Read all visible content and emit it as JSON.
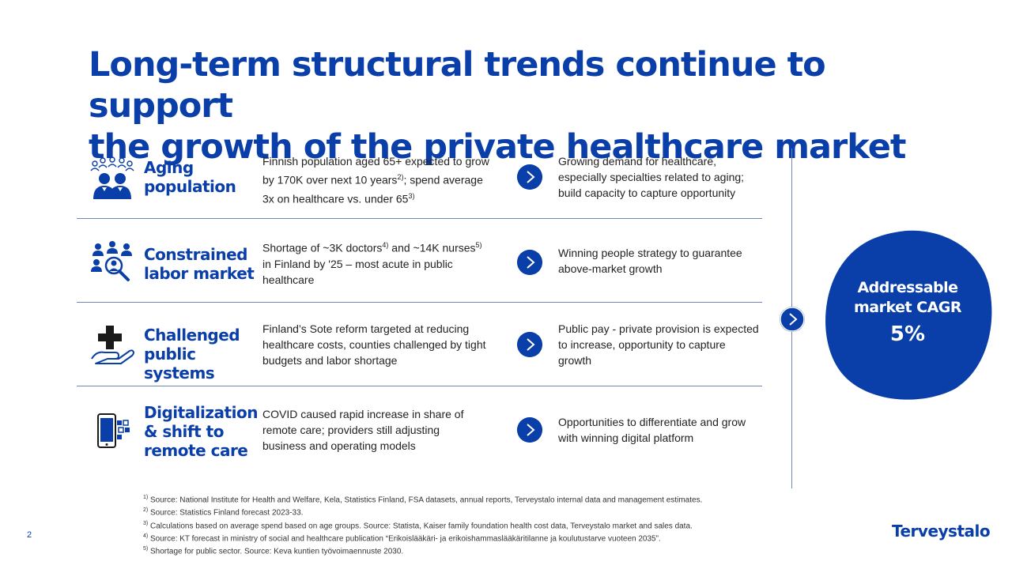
{
  "title": {
    "line1": "Long-term structural trends continue to support",
    "line2": "the growth of the private healthcare market"
  },
  "rows": [
    {
      "icon": "people-group-icon",
      "label_line1": "Aging",
      "label_line2": "population",
      "label_line3": "",
      "desc": {
        "l1": "Finnish population aged 65+ expected to grow",
        "l2a": "by 170K over next 10 years",
        "l2sup": "2)",
        "l2b": "; spend average",
        "l3a": "3x on healthcare vs. under 65",
        "l3sup": "3)"
      },
      "impact": {
        "l1": "Growing demand for healthcare,",
        "l2": "especially specialties related to aging;",
        "l3": "build capacity to capture opportunity"
      }
    },
    {
      "icon": "magnifier-people-icon",
      "label_line1": "Constrained",
      "label_line2": "labor market",
      "label_line3": "",
      "desc": {
        "l1a": "Shortage of ~3K doctors",
        "l1sup1": "4)",
        "l1b": " and ~14K nurses",
        "l1sup2": "5)",
        "l2": "in Finland by '25 – most acute in public",
        "l3": "healthcare"
      },
      "impact": {
        "l1": "Winning people strategy to guarantee",
        "l2": "above-market growth"
      }
    },
    {
      "icon": "hand-cross-icon",
      "label_line1": "Challenged",
      "label_line2": "public systems",
      "label_line3": "",
      "desc": {
        "l1": "Finland’s Sote reform targeted at reducing",
        "l2": "healthcare costs, counties challenged by tight",
        "l3": "budgets and labor shortage"
      },
      "impact": {
        "l1": "Public pay - private provision is expected",
        "l2": "to increase, opportunity to capture",
        "l3": "growth"
      }
    },
    {
      "icon": "mobile-digital-icon",
      "label_line1": "Digitalization",
      "label_line2": "& shift to",
      "label_line3": "remote care",
      "desc": {
        "l1": "COVID caused rapid increase in share of",
        "l2": "remote care; providers still adjusting",
        "l3": "business and operating models"
      },
      "impact": {
        "l1": "Opportunities to differentiate and grow",
        "l2": "with winning digital platform"
      }
    }
  ],
  "cagr": {
    "label_line1": "Addressable",
    "label_line2": "market CAGR",
    "value": "5%"
  },
  "footnotes": [
    {
      "num": "1)",
      "text": " Source: National Institute for Health and Welfare, Kela, Statistics Finland, FSA datasets, annual reports, Terveystalo internal data and management estimates."
    },
    {
      "num": "2)",
      "text": " Source: Statistics Finland forecast 2023-33."
    },
    {
      "num": "3)",
      "text": " Calculations based on average spend based on age groups. Source: Statista, Kaiser family foundation health cost data, Terveystalo market and sales data."
    },
    {
      "num": "4)",
      "text": " Source: KT forecast in ministry of social and healthcare publication “Erikoislääkäri- ja erikoishammaslääkäritilanne ja koulutustarve vuoteen 2035”."
    },
    {
      "num": "5)",
      "text": " Shortage for public sector. Source: Keva kuntien työvoimaennuste 2030."
    }
  ],
  "page_number": "2",
  "brand": "Terveystalo",
  "colors": {
    "accent": "#0a3ea8",
    "divider": "#6f86b8"
  }
}
